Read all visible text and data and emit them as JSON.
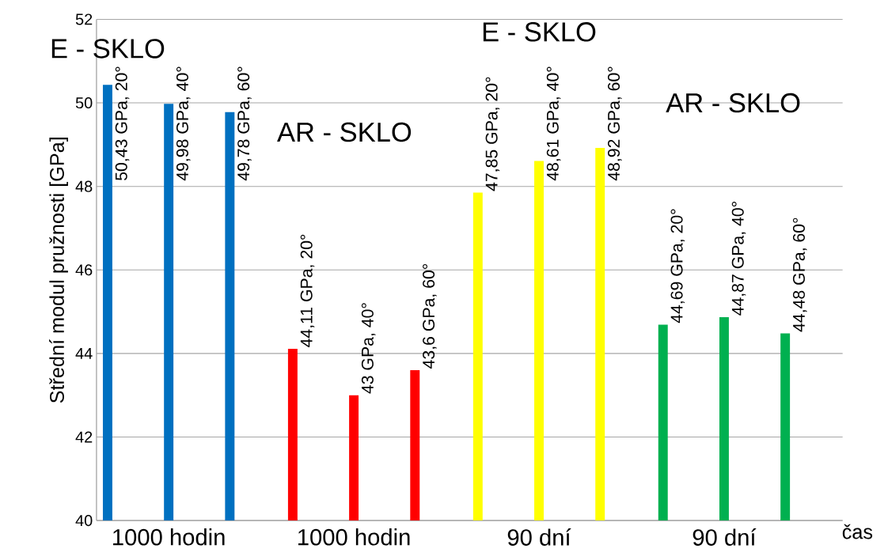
{
  "chart_data": {
    "type": "bar",
    "ylabel": "Střední modul pružnosti [GPa]",
    "xlabel": "čas",
    "categories": [
      "1000 hodin",
      "1000 hodin",
      "90 dní",
      "90 dní"
    ],
    "series": [
      {
        "colors": [
          "#0070c0",
          "#ff0000",
          "#ffff00",
          "#00b050"
        ],
        "values": [
          50.43,
          44.11,
          47.85,
          44.69
        ],
        "value_labels": [
          "50,43 GPa, 20°",
          "44,11 GPa, 20°",
          "47,85 GPa, 20°",
          "44,69 GPa, 20°"
        ]
      },
      {
        "colors": [
          "#0070c0",
          "#ff0000",
          "#ffff00",
          "#00b050"
        ],
        "values": [
          49.98,
          43,
          48.61,
          44.87
        ],
        "value_labels": [
          "49,98 GPa, 40°",
          "43 GPa, 40°",
          "48,61 GPa, 40°",
          "44,87 GPa, 40°"
        ]
      },
      {
        "colors": [
          "#0070c0",
          "#ff0000",
          "#ffff00",
          "#00b050"
        ],
        "values": [
          49.78,
          43.6,
          48.92,
          44.48
        ],
        "value_labels": [
          "49,78 GPa, 60°",
          "43,6 GPa, 60°",
          "48,92 GPa, 60°",
          "44,48 GPa, 60°"
        ]
      }
    ],
    "annotations": [
      "E - SKLO",
      "AR - SKLO",
      "E - SKLO",
      "AR - SKLO"
    ],
    "ylim": [
      40,
      52
    ],
    "yticks": [
      40,
      42,
      44,
      46,
      48,
      50,
      52
    ],
    "grid": "y"
  }
}
